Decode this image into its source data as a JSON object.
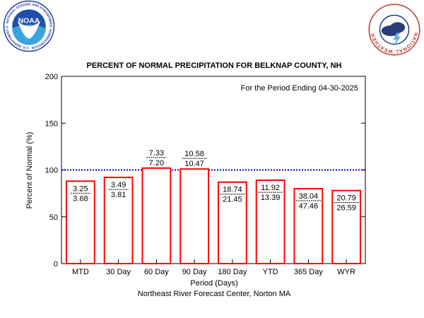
{
  "logos": {
    "noaa": {
      "center_text": "NOAA",
      "ring_text": "NATIONAL OCEANIC AND ATMOSPHERIC ADMINISTRATION · U.S. DEPARTMENT OF COMMERCE"
    },
    "nws": {
      "ring_text": "NATIONAL WEATHER SERVICE"
    }
  },
  "chart_data": {
    "type": "bar",
    "title": "PERCENT OF NORMAL PRECIPITATION FOR BELKNAP COUNTY, NH",
    "annotation": "For the Period Ending 04-30-2025",
    "xlabel": "Period (Days)",
    "ylabel": "Percent of Normal (%)",
    "source": "Northeast River Forecast Center, Norton MA",
    "ylim": [
      0,
      200
    ],
    "yticks": [
      0,
      50,
      100,
      150,
      200
    ],
    "reference_line": 100,
    "categories": [
      "MTD",
      "30 Day",
      "60 Day",
      "90 Day",
      "180 Day",
      "YTD",
      "365 Day",
      "WYR"
    ],
    "values": [
      88,
      92,
      102,
      101,
      87,
      89,
      80,
      78
    ],
    "observed": [
      "3.25",
      "3.49",
      "7.33",
      "10.58",
      "18.74",
      "11.92",
      "38.04",
      "20.79"
    ],
    "normal": [
      "3.68",
      "3.81",
      "7.20",
      "10.47",
      "21.45",
      "13.39",
      "47.46",
      "26.59"
    ],
    "colors": {
      "bar_stroke": "#ff0000",
      "reference_line": "#0000cc",
      "axis": "#000000"
    }
  }
}
